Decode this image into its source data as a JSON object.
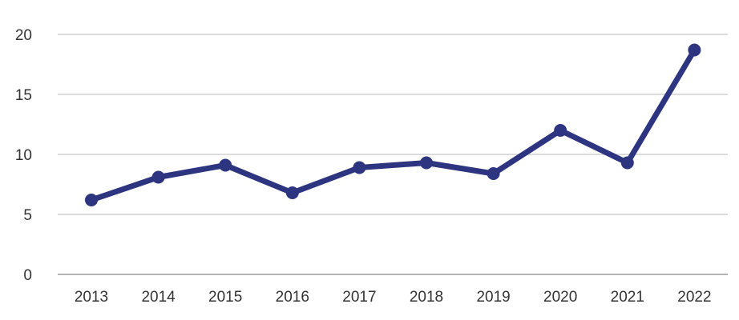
{
  "chart_data": {
    "type": "line",
    "title": "",
    "xlabel": "",
    "ylabel": "",
    "categories": [
      "2013",
      "2014",
      "2015",
      "2016",
      "2017",
      "2018",
      "2019",
      "2020",
      "2021",
      "2022"
    ],
    "series": [
      {
        "values": [
          6.2,
          8.1,
          9.1,
          6.8,
          8.9,
          9.3,
          8.4,
          12.0,
          9.3,
          18.7
        ],
        "color": "#2d3480"
      }
    ],
    "ylim": [
      0,
      20
    ],
    "yticks": [
      "0",
      "5",
      "10",
      "15",
      "20"
    ],
    "grid": true,
    "legend": "none"
  }
}
